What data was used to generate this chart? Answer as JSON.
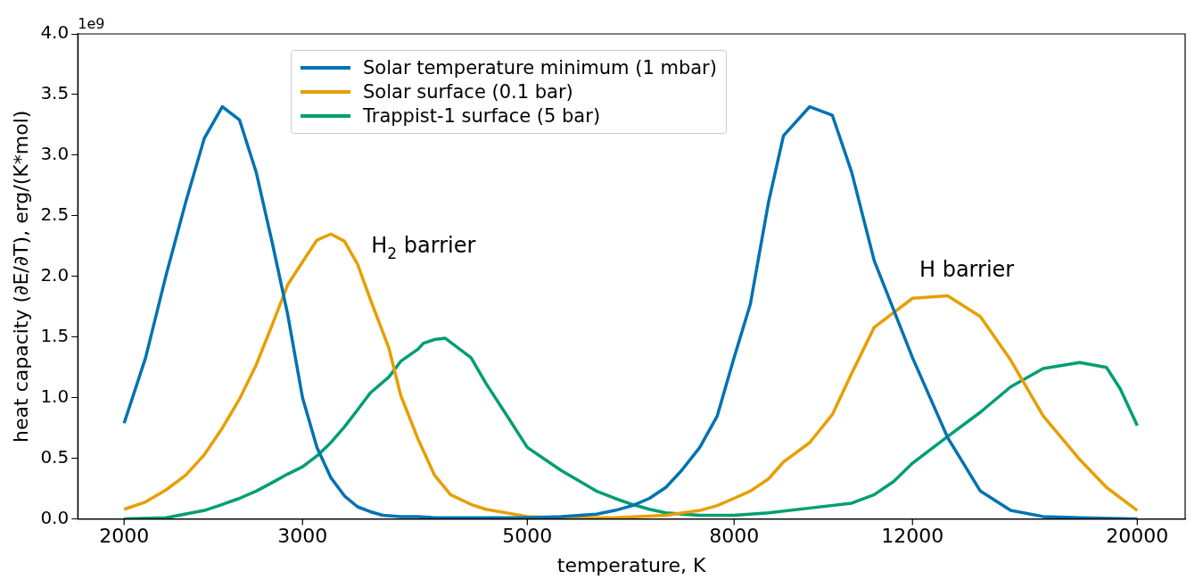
{
  "chart_data": {
    "type": "line",
    "xlabel": "temperature, K",
    "ylabel": "heat capacity (∂E/∂T), erg/(K*mol)",
    "log": "x",
    "xlim": [
      1800,
      22300
    ],
    "xticks": [
      2000,
      3000,
      5000,
      8000,
      12000,
      20000
    ],
    "ylim": [
      0,
      4
    ],
    "yticks": [
      {
        "value": 0,
        "label": "0.0"
      },
      {
        "value": 0.5,
        "label": "0.5"
      },
      {
        "value": 1,
        "label": "1.0"
      },
      {
        "value": 1.5,
        "label": "1.5"
      },
      {
        "value": 2,
        "label": "2.0"
      },
      {
        "value": 2.5,
        "label": "2.5"
      },
      {
        "value": 3,
        "label": "3.0"
      },
      {
        "value": 3.5,
        "label": "3.5"
      },
      {
        "value": 4,
        "label": "4.0"
      }
    ],
    "grid": false,
    "legend": "top left",
    "marker": "none",
    "line_style": "solid",
    "annotations": [
      "1e9",
      "H$_{2}$ barrier",
      "H barrier"
    ],
    "series": [
      {
        "name": "Solar temperature minimum (1 mbar)",
        "color": "#0072b2",
        "x": [
          2000,
          2100,
          2200,
          2300,
          2400,
          2500,
          2600,
          2700,
          2800,
          2900,
          3000,
          3100,
          3200,
          3300,
          3400,
          3500,
          3600,
          3750,
          3900,
          4050,
          4400,
          5000,
          5400,
          5850,
          6100,
          6350,
          6600,
          6850,
          7100,
          7400,
          7700,
          8000,
          8300,
          8650,
          8950,
          9500,
          10000,
          10450,
          11000,
          12000,
          13000,
          14000,
          15000,
          16150,
          17550,
          20000
        ],
        "values": [
          0.79,
          1.33,
          2.01,
          2.61,
          3.14,
          3.4,
          3.29,
          2.86,
          2.28,
          1.69,
          1.0,
          0.59,
          0.34,
          0.19,
          0.1,
          0.06,
          0.03,
          0.02,
          0.02,
          0.01,
          0.01,
          0.01,
          0.02,
          0.04,
          0.07,
          0.11,
          0.17,
          0.26,
          0.4,
          0.59,
          0.85,
          1.33,
          1.77,
          2.61,
          3.16,
          3.4,
          3.33,
          2.86,
          2.13,
          1.33,
          0.67,
          0.23,
          0.07,
          0.02,
          0.01,
          0.0
        ]
      },
      {
        "name": "Solar surface (0.1 bar)",
        "color": "#e69f00",
        "x": [
          2000,
          2100,
          2200,
          2300,
          2400,
          2500,
          2600,
          2700,
          2800,
          2900,
          3000,
          3100,
          3200,
          3300,
          3400,
          3500,
          3650,
          3750,
          3900,
          4050,
          4200,
          4400,
          4550,
          5000,
          5400,
          6100,
          6850,
          7400,
          7700,
          8000,
          8300,
          8650,
          8950,
          9500,
          10000,
          10450,
          11000,
          12000,
          13000,
          14000,
          15000,
          16150,
          17550,
          18650,
          20000
        ],
        "values": [
          0.08,
          0.14,
          0.24,
          0.36,
          0.53,
          0.75,
          0.99,
          1.27,
          1.6,
          1.93,
          2.12,
          2.3,
          2.35,
          2.29,
          2.1,
          1.81,
          1.41,
          1.02,
          0.66,
          0.36,
          0.2,
          0.12,
          0.08,
          0.02,
          0.01,
          0.01,
          0.03,
          0.07,
          0.11,
          0.17,
          0.23,
          0.33,
          0.47,
          0.63,
          0.86,
          1.2,
          1.58,
          1.82,
          1.84,
          1.67,
          1.31,
          0.85,
          0.49,
          0.26,
          0.07
        ]
      },
      {
        "name": "Trappist-1 surface (5 bar)",
        "color": "#009e73",
        "x": [
          2000,
          2200,
          2400,
          2500,
          2600,
          2700,
          2800,
          2900,
          3000,
          3100,
          3200,
          3300,
          3400,
          3500,
          3650,
          3750,
          3900,
          3950,
          4050,
          4150,
          4400,
          4550,
          4750,
          5000,
          5400,
          5850,
          6100,
          6350,
          6600,
          6850,
          7400,
          8000,
          8650,
          9500,
          10450,
          11000,
          11500,
          12000,
          13000,
          14000,
          15000,
          16150,
          17550,
          18650,
          19250,
          20000
        ],
        "values": [
          0.0,
          0.01,
          0.07,
          0.12,
          0.17,
          0.23,
          0.3,
          0.37,
          0.43,
          0.52,
          0.63,
          0.76,
          0.9,
          1.04,
          1.17,
          1.3,
          1.4,
          1.45,
          1.48,
          1.49,
          1.33,
          1.12,
          0.88,
          0.59,
          0.4,
          0.23,
          0.17,
          0.12,
          0.08,
          0.05,
          0.03,
          0.03,
          0.05,
          0.09,
          0.13,
          0.2,
          0.31,
          0.46,
          0.68,
          0.88,
          1.09,
          1.24,
          1.29,
          1.25,
          1.07,
          0.77
        ]
      }
    ]
  }
}
